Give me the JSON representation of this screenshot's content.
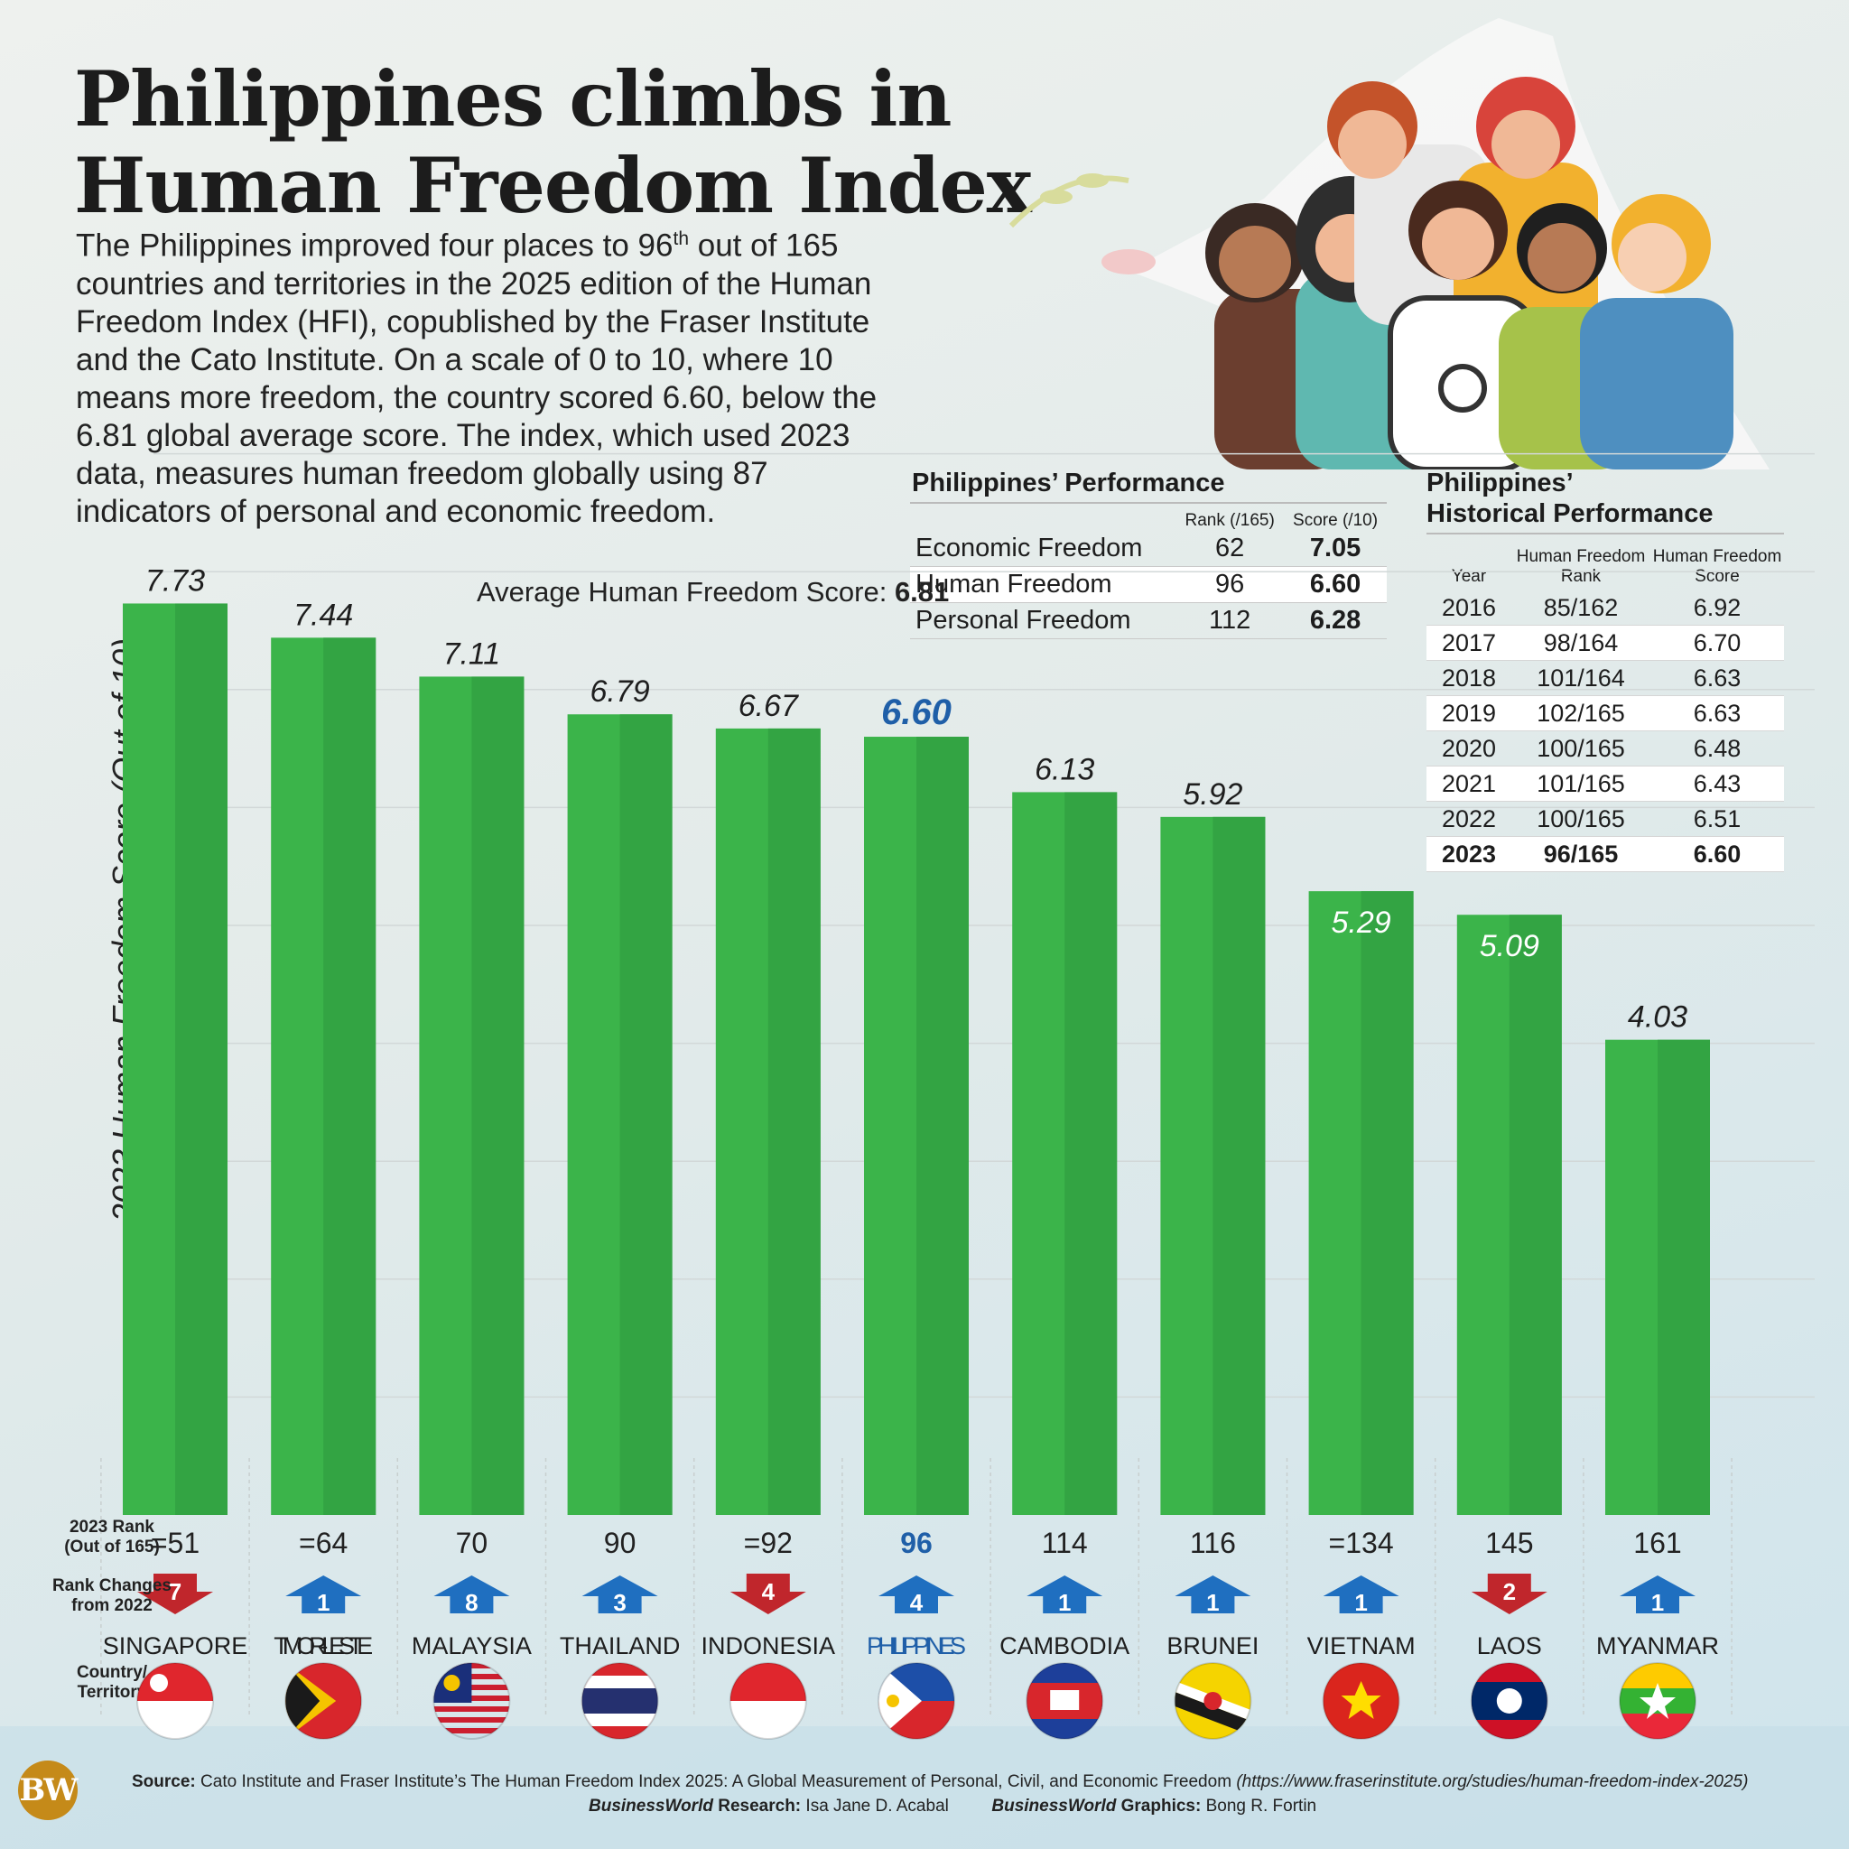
{
  "title_line1": "Philippines climbs in",
  "title_line2": "Human Freedom Index",
  "intro": {
    "p1": "The Philippines improved four places to 96",
    "sup": "th",
    "p2": " out of 165 countries and territories in the 2025 edition of the Human Freedom Index (HFI), copublished by the Fraser Institute and the Cato Institute. On a scale of 0 to 10, where 10 means more freedom, the country scored 6.60, below the 6.81 global average score. The index, which used 2023 data, measures human freedom globally using 87 indicators of personal and economic freedom."
  },
  "performance": {
    "title": "Philippines’ Performance",
    "col_rank": "Rank (/165)",
    "col_score": "Score (/10)",
    "rows": [
      {
        "label": "Economic Freedom",
        "rank": "62",
        "score": "7.05"
      },
      {
        "label": "Human Freedom",
        "rank": "96",
        "score": "6.60"
      },
      {
        "label": "Personal Freedom",
        "rank": "112",
        "score": "6.28"
      }
    ]
  },
  "historical": {
    "title_line1": "Philippines’",
    "title_line2": "Historical Performance",
    "col_year": "Year",
    "col_rank": "Human Freedom Rank",
    "col_score": "Human Freedom Score",
    "rows": [
      {
        "year": "2016",
        "rank": "85/162",
        "score": "6.92"
      },
      {
        "year": "2017",
        "rank": "98/164",
        "score": "6.70"
      },
      {
        "year": "2018",
        "rank": "101/164",
        "score": "6.63"
      },
      {
        "year": "2019",
        "rank": "102/165",
        "score": "6.63"
      },
      {
        "year": "2020",
        "rank": "100/165",
        "score": "6.48"
      },
      {
        "year": "2021",
        "rank": "101/165",
        "score": "6.43"
      },
      {
        "year": "2022",
        "rank": "100/165",
        "score": "6.51"
      },
      {
        "year": "2023",
        "rank": "96/165",
        "score": "6.60"
      }
    ]
  },
  "chart_data": {
    "type": "bar",
    "ylabel": "2023 Human Freedom Score (Out of 10)",
    "ylim": [
      0,
      10
    ],
    "categories": [
      "SINGAPORE",
      "TIMOR-LESTE",
      "MALAYSIA",
      "THAILAND",
      "INDONESIA",
      "PHILIPPINES",
      "CAMBODIA",
      "BRUNEI",
      "VIETNAM",
      "LAOS",
      "MYANMAR"
    ],
    "values": [
      7.73,
      7.44,
      7.11,
      6.79,
      6.67,
      6.6,
      6.13,
      5.92,
      5.29,
      5.09,
      4.03
    ],
    "value_labels": [
      "7.73",
      "7.44",
      "7.11",
      "6.79",
      "6.67",
      "6.60",
      "6.13",
      "5.92",
      "5.29",
      "5.09",
      "4.03"
    ],
    "highlight": "PHILIPPINES",
    "average_label": "Average Human Freedom Score:",
    "average_value": "6.81",
    "rank_row_label": [
      "2023 Rank",
      "(Out of 165)"
    ],
    "ranks": [
      "=51",
      "=64",
      "70",
      "90",
      "=92",
      "96",
      "114",
      "116",
      "=134",
      "145",
      "161"
    ],
    "change_row_label": [
      "Rank Changes",
      "from 2022"
    ],
    "rank_changes": [
      {
        "dir": "down",
        "value": "7"
      },
      {
        "dir": "up",
        "value": "1"
      },
      {
        "dir": "up",
        "value": "8"
      },
      {
        "dir": "up",
        "value": "3"
      },
      {
        "dir": "down",
        "value": "4"
      },
      {
        "dir": "up",
        "value": "4"
      },
      {
        "dir": "up",
        "value": "1"
      },
      {
        "dir": "up",
        "value": "1"
      },
      {
        "dir": "up",
        "value": "1"
      },
      {
        "dir": "down",
        "value": "2"
      },
      {
        "dir": "up",
        "value": "1"
      }
    ],
    "country_row_label": [
      "Country/",
      "Territory"
    ],
    "flags": [
      "singapore-flag-icon",
      "timor-leste-flag-icon",
      "malaysia-flag-icon",
      "thailand-flag-icon",
      "indonesia-flag-icon",
      "philippines-flag-icon",
      "cambodia-flag-icon",
      "brunei-flag-icon",
      "vietnam-flag-icon",
      "laos-flag-icon",
      "myanmar-flag-icon"
    ],
    "colors": {
      "bar": "#3bb44a",
      "bar_shade": "#33a443",
      "highlight_text": "#1f5fa8",
      "up": "#1f6fc0",
      "down": "#c0262c"
    }
  },
  "source": {
    "label": "Source:",
    "text": "Cato Institute and Fraser Institute’s The Human Freedom Index 2025: A Global Measurement of Personal, Civil, and Economic Freedom",
    "url": "(https://www.fraserinstitute.org/studies/human-freedom-index-2025)"
  },
  "credits": {
    "research_brand": "BusinessWorld",
    "research_label": " Research:",
    "research_name": "Isa Jane D. Acabal",
    "graphics_brand": "BusinessWorld",
    "graphics_label": " Graphics:",
    "graphics_name": "Bong R. Fortin"
  },
  "logo": "BW"
}
